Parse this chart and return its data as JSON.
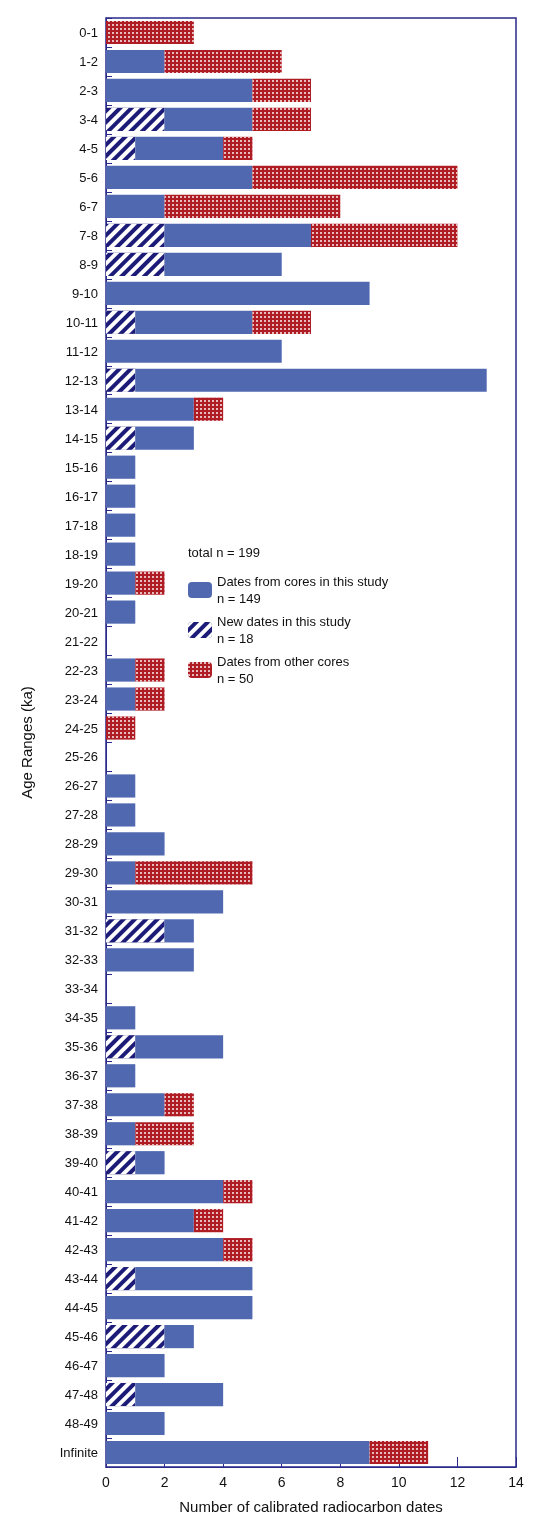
{
  "chart_data": {
    "type": "bar",
    "orientation": "horizontal",
    "stacked": true,
    "grid": false,
    "legend": "left",
    "xlabel": "Number of calibrated radiocarbon dates",
    "ylabel": "Age Ranges (ka)",
    "annotations": [
      "total n = 199"
    ],
    "xlim": [
      0,
      14
    ],
    "xticks": [
      0,
      2,
      4,
      6,
      8,
      10,
      12,
      14
    ],
    "categories": [
      "0-1",
      "1-2",
      "2-3",
      "3-4",
      "4-5",
      "5-6",
      "6-7",
      "7-8",
      "8-9",
      "9-10",
      "10-11",
      "11-12",
      "12-13",
      "13-14",
      "14-15",
      "15-16",
      "16-17",
      "17-18",
      "18-19",
      "19-20",
      "20-21",
      "21-22",
      "22-23",
      "23-24",
      "24-25",
      "25-26",
      "26-27",
      "27-28",
      "28-29",
      "29-30",
      "30-31",
      "31-32",
      "32-33",
      "33-34",
      "34-35",
      "35-36",
      "36-37",
      "37-38",
      "38-39",
      "39-40",
      "40-41",
      "41-42",
      "42-43",
      "43-44",
      "44-45",
      "45-46",
      "46-47",
      "47-48",
      "48-49",
      "Infinite"
    ],
    "series": [
      {
        "name": "New dates in this study\nn = 18",
        "color": "#1c1c78",
        "values": [
          0,
          0,
          0,
          2,
          1,
          0,
          0,
          2,
          2,
          0,
          1,
          0,
          1,
          0,
          1,
          0,
          0,
          0,
          0,
          0,
          0,
          0,
          0,
          0,
          0,
          0,
          0,
          0,
          0,
          0,
          0,
          2,
          0,
          0,
          0,
          1,
          0,
          0,
          0,
          1,
          0,
          0,
          0,
          1,
          0,
          2,
          0,
          1,
          0,
          0
        ]
      },
      {
        "name": "Dates from cores in this study\nn = 149",
        "color": "#5068b0",
        "values": [
          0,
          2,
          5,
          3,
          3,
          5,
          2,
          5,
          4,
          9,
          4,
          6,
          12,
          3,
          2,
          1,
          1,
          1,
          1,
          1,
          1,
          0,
          1,
          1,
          0,
          0,
          1,
          1,
          2,
          1,
          4,
          1,
          3,
          0,
          1,
          3,
          1,
          2,
          1,
          1,
          4,
          3,
          4,
          4,
          5,
          1,
          2,
          3,
          2,
          9
        ]
      },
      {
        "name": "Dates from other cores\nn = 50",
        "color": "#b01c24",
        "values": [
          3,
          4,
          2,
          2,
          1,
          7,
          6,
          5,
          0,
          0,
          2,
          0,
          0,
          1,
          0,
          0,
          0,
          0,
          0,
          1,
          0,
          0,
          1,
          1,
          1,
          0,
          0,
          0,
          0,
          4,
          0,
          0,
          0,
          0,
          0,
          0,
          0,
          1,
          2,
          0,
          1,
          1,
          1,
          0,
          0,
          0,
          0,
          0,
          0,
          2
        ]
      }
    ]
  }
}
